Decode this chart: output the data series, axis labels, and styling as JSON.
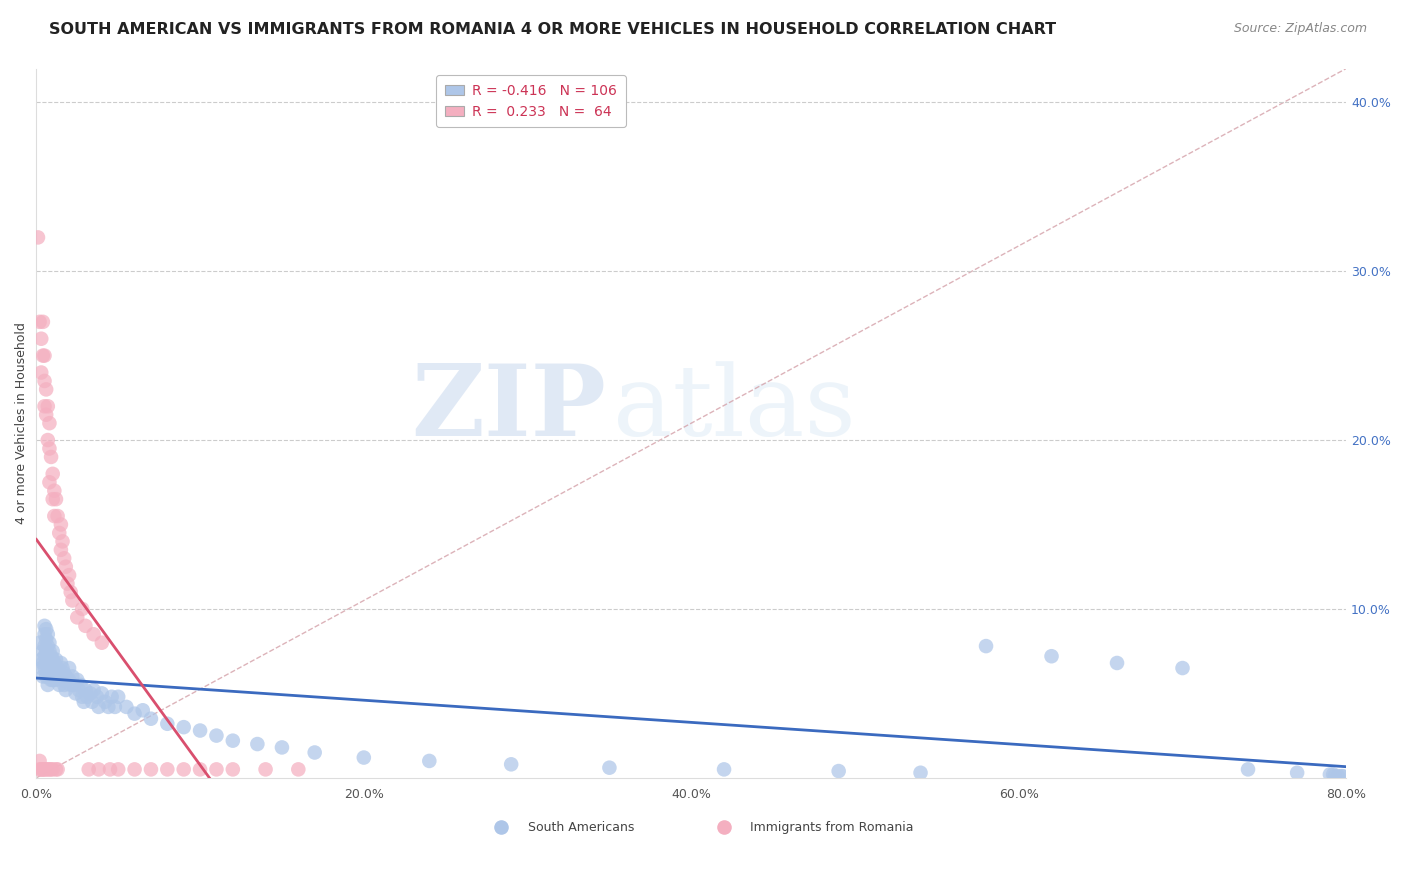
{
  "title": "SOUTH AMERICAN VS IMMIGRANTS FROM ROMANIA 4 OR MORE VEHICLES IN HOUSEHOLD CORRELATION CHART",
  "source": "Source: ZipAtlas.com",
  "ylabel": "4 or more Vehicles in Household",
  "xlim": [
    0.0,
    0.8
  ],
  "ylim": [
    0.0,
    0.42
  ],
  "xticks": [
    0.0,
    0.2,
    0.4,
    0.6,
    0.8
  ],
  "xticklabels": [
    "0.0%",
    "20.0%",
    "40.0%",
    "60.0%",
    "80.0%"
  ],
  "yticks_right": [
    0.1,
    0.2,
    0.3,
    0.4
  ],
  "yticklabels_right": [
    "10.0%",
    "20.0%",
    "30.0%",
    "40.0%"
  ],
  "blue_R": -0.416,
  "blue_N": 106,
  "pink_R": 0.233,
  "pink_N": 64,
  "blue_color": "#aec6e8",
  "pink_color": "#f4afc0",
  "blue_line_color": "#3b6abf",
  "pink_line_color": "#d94f6e",
  "diagonal_color": "#d4a0a8",
  "watermark_zip": "ZIP",
  "watermark_atlas": "atlas",
  "blue_scatter_x": [
    0.002,
    0.003,
    0.003,
    0.004,
    0.004,
    0.004,
    0.005,
    0.005,
    0.005,
    0.005,
    0.005,
    0.006,
    0.006,
    0.006,
    0.006,
    0.006,
    0.007,
    0.007,
    0.007,
    0.007,
    0.007,
    0.007,
    0.008,
    0.008,
    0.008,
    0.008,
    0.009,
    0.009,
    0.009,
    0.01,
    0.01,
    0.01,
    0.01,
    0.011,
    0.011,
    0.012,
    0.012,
    0.012,
    0.013,
    0.013,
    0.014,
    0.014,
    0.015,
    0.015,
    0.016,
    0.016,
    0.017,
    0.017,
    0.018,
    0.018,
    0.019,
    0.02,
    0.02,
    0.021,
    0.022,
    0.023,
    0.024,
    0.025,
    0.026,
    0.027,
    0.028,
    0.029,
    0.03,
    0.031,
    0.033,
    0.034,
    0.035,
    0.037,
    0.038,
    0.04,
    0.042,
    0.044,
    0.046,
    0.048,
    0.05,
    0.055,
    0.06,
    0.065,
    0.07,
    0.08,
    0.09,
    0.1,
    0.11,
    0.12,
    0.135,
    0.15,
    0.17,
    0.2,
    0.24,
    0.29,
    0.35,
    0.42,
    0.49,
    0.54,
    0.58,
    0.62,
    0.66,
    0.7,
    0.74,
    0.77,
    0.79,
    0.792,
    0.793,
    0.795,
    0.797,
    0.798
  ],
  "blue_scatter_y": [
    0.08,
    0.07,
    0.065,
    0.075,
    0.068,
    0.06,
    0.09,
    0.085,
    0.078,
    0.072,
    0.065,
    0.088,
    0.082,
    0.075,
    0.068,
    0.06,
    0.085,
    0.078,
    0.072,
    0.068,
    0.062,
    0.055,
    0.08,
    0.075,
    0.068,
    0.06,
    0.072,
    0.065,
    0.058,
    0.075,
    0.07,
    0.065,
    0.058,
    0.068,
    0.062,
    0.07,
    0.065,
    0.058,
    0.065,
    0.06,
    0.062,
    0.055,
    0.068,
    0.06,
    0.065,
    0.058,
    0.062,
    0.055,
    0.06,
    0.052,
    0.058,
    0.065,
    0.058,
    0.055,
    0.06,
    0.055,
    0.05,
    0.058,
    0.052,
    0.055,
    0.048,
    0.045,
    0.052,
    0.048,
    0.05,
    0.045,
    0.052,
    0.048,
    0.042,
    0.05,
    0.045,
    0.042,
    0.048,
    0.042,
    0.048,
    0.042,
    0.038,
    0.04,
    0.035,
    0.032,
    0.03,
    0.028,
    0.025,
    0.022,
    0.02,
    0.018,
    0.015,
    0.012,
    0.01,
    0.008,
    0.006,
    0.005,
    0.004,
    0.003,
    0.078,
    0.072,
    0.068,
    0.065,
    0.005,
    0.003,
    0.002,
    0.002,
    0.001,
    0.001,
    0.001,
    0.001
  ],
  "pink_scatter_x": [
    0.001,
    0.002,
    0.002,
    0.002,
    0.003,
    0.003,
    0.003,
    0.004,
    0.004,
    0.004,
    0.004,
    0.005,
    0.005,
    0.005,
    0.005,
    0.006,
    0.006,
    0.006,
    0.007,
    0.007,
    0.007,
    0.008,
    0.008,
    0.008,
    0.008,
    0.009,
    0.009,
    0.01,
    0.01,
    0.01,
    0.011,
    0.011,
    0.012,
    0.012,
    0.013,
    0.013,
    0.014,
    0.015,
    0.015,
    0.016,
    0.017,
    0.018,
    0.019,
    0.02,
    0.021,
    0.022,
    0.025,
    0.028,
    0.03,
    0.032,
    0.035,
    0.038,
    0.04,
    0.045,
    0.05,
    0.06,
    0.07,
    0.08,
    0.09,
    0.1,
    0.11,
    0.12,
    0.14,
    0.16
  ],
  "pink_scatter_y": [
    0.32,
    0.27,
    0.01,
    0.005,
    0.26,
    0.24,
    0.005,
    0.27,
    0.25,
    0.005,
    0.005,
    0.25,
    0.235,
    0.22,
    0.005,
    0.23,
    0.215,
    0.005,
    0.22,
    0.2,
    0.005,
    0.21,
    0.195,
    0.175,
    0.005,
    0.19,
    0.005,
    0.18,
    0.165,
    0.005,
    0.17,
    0.155,
    0.165,
    0.005,
    0.155,
    0.005,
    0.145,
    0.15,
    0.135,
    0.14,
    0.13,
    0.125,
    0.115,
    0.12,
    0.11,
    0.105,
    0.095,
    0.1,
    0.09,
    0.005,
    0.085,
    0.005,
    0.08,
    0.005,
    0.005,
    0.005,
    0.005,
    0.005,
    0.005,
    0.005,
    0.005,
    0.005,
    0.005,
    0.005
  ],
  "title_fontsize": 11.5,
  "source_fontsize": 9,
  "axis_label_fontsize": 9,
  "tick_fontsize": 9,
  "legend_fontsize": 10
}
